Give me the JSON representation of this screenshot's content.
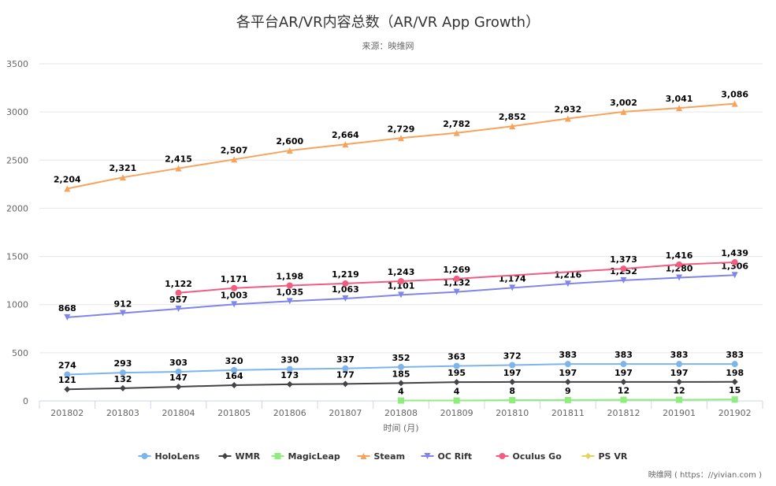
{
  "chart_data": {
    "type": "line",
    "title": "各平台AR/VR内容总数（AR/VR App Growth）",
    "subtitle": "来源：映维网",
    "xlabel": "时间 (月)",
    "ylabel": "",
    "ylim": [
      0,
      3500
    ],
    "yticks": [
      0,
      500,
      1000,
      1500,
      2000,
      2500,
      3000,
      3500
    ],
    "grid": true,
    "legend_position": "bottom",
    "categories": [
      "201802",
      "201803",
      "201804",
      "201805",
      "201806",
      "201807",
      "201808",
      "201809",
      "201810",
      "201811",
      "201812",
      "201901",
      "201902"
    ],
    "series": [
      {
        "name": "HoloLens",
        "color": "#7cb5ec",
        "marker": "circle",
        "values": [
          274,
          293,
          303,
          320,
          330,
          337,
          352,
          363,
          372,
          383,
          383,
          383,
          383
        ]
      },
      {
        "name": "WMR",
        "color": "#434348",
        "marker": "diamond",
        "values": [
          121,
          132,
          147,
          164,
          173,
          177,
          185,
          195,
          197,
          197,
          197,
          197,
          198
        ]
      },
      {
        "name": "MagicLeap",
        "color": "#90ed7d",
        "marker": "square",
        "values": [
          null,
          null,
          null,
          null,
          null,
          null,
          4,
          4,
          8,
          9,
          12,
          12,
          15
        ]
      },
      {
        "name": "Steam",
        "color": "#f7a35c",
        "marker": "triangle",
        "values": [
          2204,
          2321,
          2415,
          2507,
          2600,
          2664,
          2729,
          2782,
          2852,
          2932,
          3002,
          3041,
          3086
        ]
      },
      {
        "name": "OC Rift",
        "color": "#8085e9",
        "marker": "triangle-down",
        "values": [
          868,
          912,
          957,
          1003,
          1035,
          1063,
          1101,
          1132,
          1174,
          1216,
          1252,
          1280,
          1306
        ]
      },
      {
        "name": "Oculus Go",
        "color": "#f15c80",
        "marker": "circle",
        "values": [
          null,
          null,
          1122,
          1171,
          1198,
          1219,
          1243,
          1269,
          null,
          null,
          1373,
          1416,
          1439
        ]
      },
      {
        "name": "PS VR",
        "color": "#e4d354",
        "marker": "diamond",
        "values": [
          null,
          null,
          null,
          null,
          null,
          null,
          null,
          null,
          null,
          null,
          null,
          null,
          null
        ]
      }
    ]
  },
  "credit": "映维网 ( https：//yivian.com )"
}
